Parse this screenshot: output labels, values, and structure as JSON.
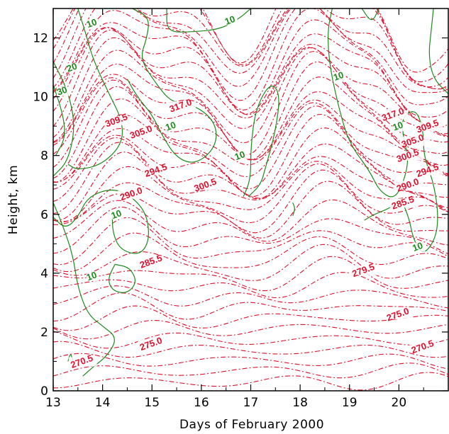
{
  "chart_data": {
    "type": "contour",
    "title": "",
    "xlabel": "Days of February 2000",
    "ylabel": "Height, km",
    "xlim": [
      13,
      21
    ],
    "ylim": [
      0,
      13
    ],
    "x_ticks": [
      13,
      14,
      15,
      16,
      17,
      18,
      19,
      20
    ],
    "y_ticks": [
      0,
      2,
      4,
      6,
      8,
      10,
      12
    ],
    "grid": false,
    "series": [
      {
        "name": "",
        "style": "dash-dot",
        "color": "#e0102e",
        "labels": [
          {
            "text": "317.0",
            "x": 15.6,
            "y": 9.6
          },
          {
            "text": "309.5",
            "x": 14.3,
            "y": 9.1
          },
          {
            "text": "305.0",
            "x": 14.8,
            "y": 8.7
          },
          {
            "text": "294.5",
            "x": 15.1,
            "y": 7.4
          },
          {
            "text": "300.5",
            "x": 16.1,
            "y": 6.9
          },
          {
            "text": "290.0",
            "x": 14.6,
            "y": 6.6
          },
          {
            "text": "285.5",
            "x": 15.0,
            "y": 4.3
          },
          {
            "text": "275.0",
            "x": 15.0,
            "y": 1.5
          },
          {
            "text": "270.5",
            "x": 13.6,
            "y": 0.9
          },
          {
            "text": "317.0",
            "x": 19.9,
            "y": 9.3
          },
          {
            "text": "309.5",
            "x": 20.6,
            "y": 8.9
          },
          {
            "text": "305.0",
            "x": 20.3,
            "y": 8.4
          },
          {
            "text": "300.5",
            "x": 20.2,
            "y": 7.9
          },
          {
            "text": "294.5",
            "x": 20.6,
            "y": 7.4
          },
          {
            "text": "290.0",
            "x": 20.2,
            "y": 6.9
          },
          {
            "text": "285.5",
            "x": 20.1,
            "y": 6.3
          },
          {
            "text": "279.5",
            "x": 19.3,
            "y": 4.0
          },
          {
            "text": "275.0",
            "x": 20.0,
            "y": 2.5
          },
          {
            "text": "270.5",
            "x": 20.5,
            "y": 1.4
          }
        ]
      },
      {
        "name": "",
        "style": "solid",
        "color": "#1f8a1f",
        "labels": [
          {
            "text": "10",
            "x": 13.8,
            "y": 12.4
          },
          {
            "text": "20",
            "x": 13.4,
            "y": 10.9
          },
          {
            "text": "30",
            "x": 13.2,
            "y": 10.1
          },
          {
            "text": "10",
            "x": 15.4,
            "y": 8.9
          },
          {
            "text": "10",
            "x": 16.6,
            "y": 12.5
          },
          {
            "text": "10",
            "x": 16.8,
            "y": 7.9
          },
          {
            "text": "10",
            "x": 14.3,
            "y": 5.9
          },
          {
            "text": "10",
            "x": 13.8,
            "y": 3.8
          },
          {
            "text": "10",
            "x": 18.8,
            "y": 10.6
          },
          {
            "text": "10",
            "x": 20.0,
            "y": 8.9
          },
          {
            "text": "10",
            "x": 20.4,
            "y": 4.8
          }
        ]
      }
    ]
  }
}
